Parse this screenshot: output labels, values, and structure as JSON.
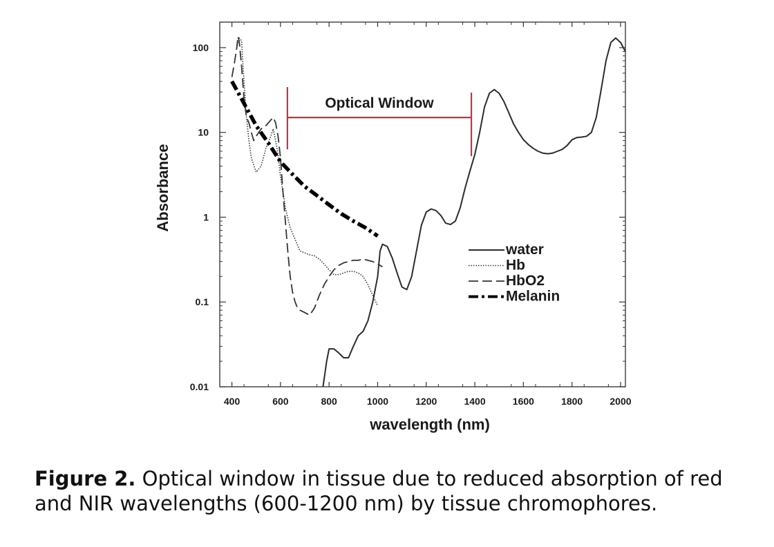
{
  "chart_data": {
    "type": "line",
    "title": "",
    "xlabel": "wavelength (nm)",
    "ylabel": "Absorbance",
    "xlim": [
      350,
      2020
    ],
    "ylim": [
      0.01,
      200
    ],
    "y_scale": "log",
    "x_ticks": [
      400,
      600,
      800,
      1000,
      1200,
      1400,
      1600,
      1800,
      2000
    ],
    "y_ticks": [
      0.01,
      0.1,
      1,
      10,
      100
    ],
    "x_tick_labels": [
      "400",
      "600",
      "800",
      "1000",
      "1200",
      "1400",
      "1600",
      "1800",
      "2000"
    ],
    "y_tick_labels": [
      "0.01",
      "0.1",
      "1",
      "10",
      "100"
    ],
    "grid": false,
    "legend_position": "right-middle",
    "series": [
      {
        "name": "water",
        "style": "solid",
        "color": "#2b2b2b",
        "x": [
          775,
          790,
          800,
          820,
          840,
          860,
          880,
          900,
          920,
          940,
          960,
          980,
          1000,
          1010,
          1020,
          1040,
          1060,
          1080,
          1100,
          1120,
          1140,
          1160,
          1180,
          1200,
          1220,
          1240,
          1260,
          1280,
          1300,
          1320,
          1340,
          1360,
          1380,
          1400,
          1420,
          1440,
          1460,
          1480,
          1500,
          1520,
          1540,
          1560,
          1580,
          1600,
          1620,
          1640,
          1660,
          1680,
          1700,
          1720,
          1740,
          1760,
          1780,
          1800,
          1820,
          1840,
          1860,
          1880,
          1900,
          1920,
          1940,
          1960,
          1980,
          2000,
          2020
        ],
        "y": [
          0.01,
          0.02,
          0.028,
          0.028,
          0.025,
          0.022,
          0.022,
          0.03,
          0.04,
          0.045,
          0.06,
          0.1,
          0.2,
          0.4,
          0.48,
          0.45,
          0.33,
          0.22,
          0.15,
          0.14,
          0.2,
          0.4,
          0.8,
          1.15,
          1.25,
          1.2,
          1.05,
          0.85,
          0.82,
          0.9,
          1.3,
          2.2,
          3.5,
          5.5,
          10,
          20,
          29,
          32,
          29,
          23,
          17,
          12.5,
          10,
          8.2,
          7.2,
          6.5,
          6.0,
          5.7,
          5.6,
          5.7,
          6.0,
          6.3,
          7.0,
          8.2,
          8.7,
          8.8,
          9.0,
          10,
          15,
          32,
          70,
          115,
          130,
          115,
          90
        ]
      },
      {
        "name": "Hb",
        "style": "dotted",
        "color": "#333333",
        "x": [
          420,
          430,
          440,
          450,
          460,
          470,
          480,
          500,
          520,
          540,
          560,
          570,
          580,
          590,
          600,
          610,
          620,
          640,
          660,
          680,
          700,
          720,
          740,
          760,
          780,
          800,
          820,
          840,
          860,
          880,
          900,
          920,
          940,
          960,
          980,
          1000
        ],
        "y": [
          100,
          130,
          120,
          40,
          15,
          8,
          5,
          3.4,
          4.0,
          6.5,
          9,
          11,
          8,
          5.5,
          3.0,
          2.0,
          1.3,
          0.75,
          0.55,
          0.4,
          0.38,
          0.36,
          0.35,
          0.32,
          0.28,
          0.24,
          0.21,
          0.21,
          0.22,
          0.23,
          0.23,
          0.22,
          0.2,
          0.16,
          0.12,
          0.09
        ]
      },
      {
        "name": "HbO2",
        "style": "dashed",
        "color": "#333333",
        "x": [
          400,
          410,
          420,
          425,
          430,
          440,
          450,
          460,
          470,
          480,
          490,
          500,
          520,
          540,
          560,
          570,
          580,
          590,
          600,
          610,
          620,
          630,
          640,
          650,
          660,
          670,
          680,
          700,
          720,
          740,
          760,
          780,
          800,
          820,
          840,
          860,
          880,
          900,
          920,
          940,
          960,
          980,
          1000,
          1020
        ],
        "y": [
          45,
          65,
          100,
          135,
          120,
          60,
          25,
          15,
          13,
          10,
          8,
          9,
          11,
          12,
          14,
          15,
          13,
          9,
          5,
          2.0,
          0.9,
          0.4,
          0.2,
          0.13,
          0.1,
          0.085,
          0.08,
          0.075,
          0.07,
          0.085,
          0.12,
          0.16,
          0.2,
          0.24,
          0.27,
          0.29,
          0.3,
          0.31,
          0.31,
          0.32,
          0.31,
          0.3,
          0.28,
          0.26
        ]
      },
      {
        "name": "Melanin",
        "style": "dash-dot-thick",
        "color": "#000000",
        "x": [
          400,
          450,
          500,
          550,
          600,
          650,
          700,
          750,
          800,
          850,
          900,
          950,
          1000
        ],
        "y": [
          40,
          22,
          12,
          7.5,
          4.5,
          3.2,
          2.3,
          1.8,
          1.4,
          1.1,
          0.9,
          0.75,
          0.6
        ]
      }
    ],
    "annotations": [
      {
        "text": "Optical Window",
        "x_start": 600,
        "x_end": 1400,
        "y": 15,
        "color": "#c8323b"
      }
    ]
  },
  "caption": {
    "lead": "Figure 2.",
    "text": " Optical window in tissue due to reduced absorption of red and NIR wavelengths (600-1200 nm) by tissue chromophores."
  }
}
